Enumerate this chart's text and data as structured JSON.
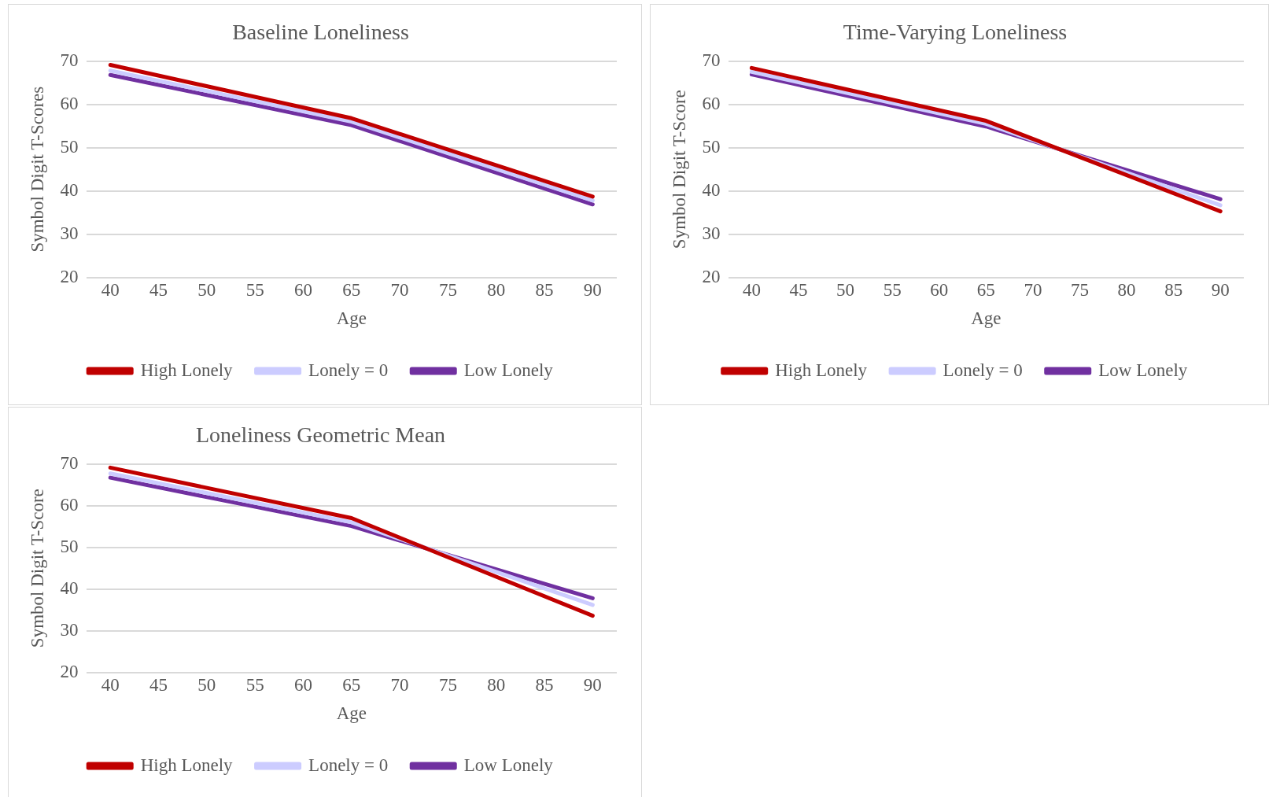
{
  "chart_data": [
    {
      "type": "line",
      "title": "Baseline Loneliness",
      "xlabel": "Age",
      "ylabel": "Symbol Digit T-Scores",
      "xlim": [
        37.5,
        92.5
      ],
      "xticks": [
        40,
        45,
        50,
        55,
        60,
        65,
        70,
        75,
        80,
        85,
        90
      ],
      "ylim": [
        20,
        70
      ],
      "yticks": [
        20,
        30,
        40,
        50,
        60,
        70
      ],
      "grid": "y",
      "legend": "bottom",
      "marker": "none",
      "line_style": "solid",
      "series": [
        {
          "name": "High Lonely",
          "color": "#c00000",
          "x": [
            40,
            65,
            90
          ],
          "values": [
            69.1,
            56.8,
            38.7
          ]
        },
        {
          "name": "Lonely = 0",
          "color": "#ccccff",
          "x": [
            40,
            65,
            90
          ],
          "values": [
            67.8,
            56.0,
            37.8
          ]
        },
        {
          "name": "Low Lonely",
          "color": "#7030a0",
          "x": [
            40,
            65,
            90
          ],
          "values": [
            66.8,
            55.2,
            36.9
          ]
        }
      ]
    },
    {
      "type": "line",
      "title": "Time-Varying Loneliness",
      "xlabel": "Age",
      "ylabel": "Symbol Digit T-Score",
      "xlim": [
        37.5,
        92.5
      ],
      "xticks": [
        40,
        45,
        50,
        55,
        60,
        65,
        70,
        75,
        80,
        85,
        90
      ],
      "ylim": [
        20,
        70
      ],
      "yticks": [
        20,
        30,
        40,
        50,
        60,
        70
      ],
      "grid": "y",
      "legend": "bottom",
      "marker": "none",
      "line_style": "solid",
      "series": [
        {
          "name": "High Lonely",
          "color": "#c00000",
          "x": [
            40,
            65,
            90
          ],
          "values": [
            68.4,
            56.2,
            35.3
          ]
        },
        {
          "name": "Lonely = 0",
          "color": "#ccccff",
          "x": [
            40,
            65,
            90
          ],
          "values": [
            67.5,
            55.5,
            36.7
          ]
        },
        {
          "name": "Low Lonely",
          "color": "#7030a0",
          "x": [
            40,
            65,
            90
          ],
          "values": [
            66.9,
            54.9,
            38.1
          ]
        }
      ]
    },
    {
      "type": "line",
      "title": "Loneliness Geometric Mean",
      "xlabel": "Age",
      "ylabel": "Symbol Digit T-Score",
      "xlim": [
        37.5,
        92.5
      ],
      "xticks": [
        40,
        45,
        50,
        55,
        60,
        65,
        70,
        75,
        80,
        85,
        90
      ],
      "ylim": [
        20,
        70
      ],
      "yticks": [
        20,
        30,
        40,
        50,
        60,
        70
      ],
      "grid": "y",
      "legend": "bottom",
      "marker": "none",
      "line_style": "solid",
      "series": [
        {
          "name": "High Lonely",
          "color": "#c00000",
          "x": [
            40,
            65,
            90
          ],
          "values": [
            69.1,
            57.0,
            33.6
          ]
        },
        {
          "name": "Lonely = 0",
          "color": "#ccccff",
          "x": [
            40,
            65,
            90
          ],
          "values": [
            67.7,
            56.0,
            36.2
          ]
        },
        {
          "name": "Low Lonely",
          "color": "#7030a0",
          "x": [
            40,
            65,
            90
          ],
          "values": [
            66.7,
            55.1,
            37.8
          ]
        }
      ]
    }
  ]
}
